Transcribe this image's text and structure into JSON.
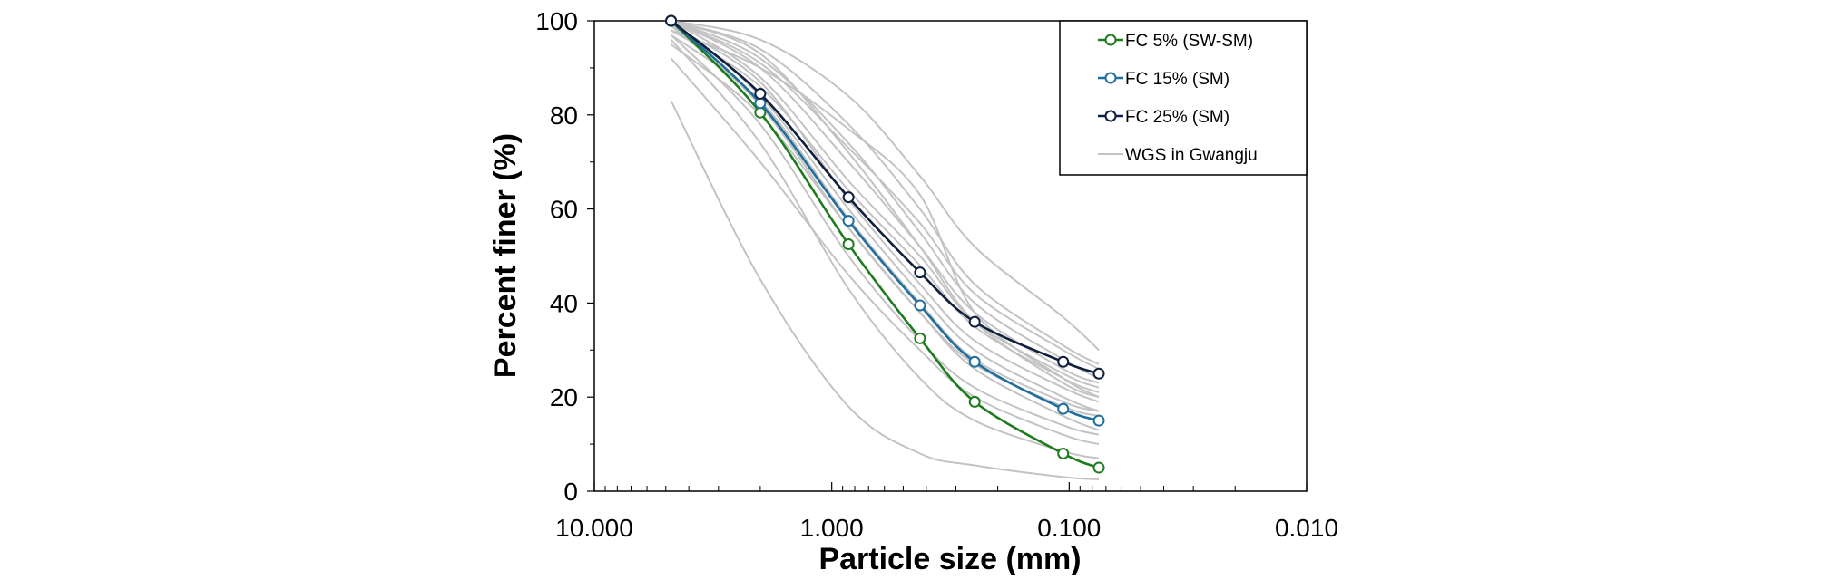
{
  "chart_data": {
    "type": "line",
    "xlabel": "Particle size (mm)",
    "ylabel": "Percent finer (%)",
    "x_scale": "log",
    "x_reversed": true,
    "xlim": [
      10.0,
      0.01
    ],
    "ylim": [
      0,
      100
    ],
    "x_ticks": [
      10.0,
      1.0,
      0.1,
      0.01
    ],
    "x_tick_labels": [
      "10.000",
      "1.000",
      "0.100",
      "0.010"
    ],
    "y_ticks": [
      0,
      20,
      40,
      60,
      80,
      100
    ],
    "y_tick_labels": [
      "0",
      "20",
      "40",
      "60",
      "80",
      "100"
    ],
    "grid": false,
    "legend_position": "top-right",
    "series": [
      {
        "name": "FC 5% (SW-SM)",
        "color": "#1e7b1e",
        "marker": "circle",
        "x": [
          4.75,
          2.0,
          0.85,
          0.425,
          0.25,
          0.106,
          0.075
        ],
        "y": [
          100,
          80.5,
          52.5,
          32.5,
          19,
          8,
          5
        ]
      },
      {
        "name": "FC 15% (SM)",
        "color": "#1f6e9e",
        "marker": "circle",
        "x": [
          4.75,
          2.0,
          0.85,
          0.425,
          0.25,
          0.106,
          0.075
        ],
        "y": [
          100,
          82.5,
          57.5,
          39.5,
          27.5,
          17.5,
          15
        ]
      },
      {
        "name": "FC 25% (SM)",
        "color": "#0f1f3d",
        "marker": "circle",
        "x": [
          4.75,
          2.0,
          0.85,
          0.425,
          0.25,
          0.106,
          0.075
        ],
        "y": [
          100,
          84.5,
          62.5,
          46.5,
          36,
          27.5,
          25
        ]
      },
      {
        "name": "WGS in Gwangju",
        "color": "#c3c3c3",
        "marker": "none",
        "curves": [
          {
            "x": [
              4.75,
              2.0,
              0.85,
              0.425,
              0.25,
              0.106,
              0.075
            ],
            "y": [
              83,
              45,
              18,
              8,
              5.5,
              3,
              2.5
            ]
          },
          {
            "x": [
              4.75,
              2.0,
              0.85,
              0.425,
              0.25,
              0.106,
              0.075
            ],
            "y": [
              96,
              74,
              43,
              24,
              15,
              8.5,
              7
            ]
          },
          {
            "x": [
              4.75,
              2.0,
              0.85,
              0.425,
              0.25,
              0.106,
              0.075
            ],
            "y": [
              92,
              70,
              46,
              30,
              20,
              12,
              10
            ]
          },
          {
            "x": [
              4.75,
              2.0,
              0.85,
              0.425,
              0.25,
              0.106,
              0.075
            ],
            "y": [
              97,
              78,
              50,
              32,
              22,
              14,
              12
            ]
          },
          {
            "x": [
              4.75,
              2.0,
              0.85,
              0.425,
              0.25,
              0.106,
              0.075
            ],
            "y": [
              99,
              82,
              56,
              38,
              27,
              18,
              16
            ]
          },
          {
            "x": [
              4.75,
              2.0,
              0.85,
              0.425,
              0.25,
              0.106,
              0.075
            ],
            "y": [
              100,
              84,
              60,
              42,
              30,
              20,
              17
            ]
          },
          {
            "x": [
              4.75,
              2.0,
              0.85,
              0.425,
              0.25,
              0.106,
              0.075
            ],
            "y": [
              98,
              86,
              64,
              48,
              35,
              24,
              21
            ]
          },
          {
            "x": [
              4.75,
              2.0,
              0.85,
              0.425,
              0.25,
              0.106,
              0.075
            ],
            "y": [
              100,
              88,
              66,
              50,
              36,
              25,
              22
            ]
          },
          {
            "x": [
              4.75,
              2.0,
              0.85,
              0.425,
              0.25,
              0.106,
              0.075
            ],
            "y": [
              100,
              90,
              70,
              52,
              38,
              26,
              23
            ]
          },
          {
            "x": [
              4.75,
              2.0,
              0.85,
              0.425,
              0.25,
              0.106,
              0.075
            ],
            "y": [
              100,
              92,
              74,
              55,
              40,
              28,
              24
            ]
          },
          {
            "x": [
              4.75,
              2.0,
              0.85,
              0.425,
              0.25,
              0.106,
              0.075
            ],
            "y": [
              100,
              94,
              78,
              60,
              44,
              31,
              27
            ]
          },
          {
            "x": [
              4.75,
              2.0,
              0.85,
              0.425,
              0.25,
              0.106,
              0.075
            ],
            "y": [
              100,
              96,
              84,
              67,
              52,
              37,
              30
            ]
          },
          {
            "x": [
              4.75,
              2.0,
              0.85,
              0.425,
              0.25,
              0.106,
              0.075
            ],
            "y": [
              98,
              90,
              77,
              63,
              38,
              24,
              20
            ]
          },
          {
            "x": [
              4.75,
              2.0,
              0.85,
              0.425,
              0.25,
              0.106,
              0.075
            ],
            "y": [
              95,
              80,
              56,
              38,
              26,
              16,
              13
            ]
          },
          {
            "x": [
              4.75,
              2.0,
              0.85,
              0.425,
              0.25,
              0.106,
              0.075
            ],
            "y": [
              99,
              87,
              62,
              44,
              32,
              22,
              19
            ]
          },
          {
            "x": [
              4.75,
              2.0,
              0.85,
              0.425,
              0.25,
              0.106,
              0.075
            ],
            "y": [
              100,
              93,
              72,
              52,
              36,
              23,
              20
            ]
          },
          {
            "x": [
              4.75,
              2.0,
              0.85,
              0.425,
              0.25,
              0.106,
              0.075
            ],
            "y": [
              97,
              83,
              58,
              40,
              28,
              19,
              17
            ]
          },
          {
            "x": [
              4.75,
              2.0,
              0.85,
              0.425,
              0.25,
              0.106,
              0.075
            ],
            "y": [
              100,
              91,
              73,
              57,
              42,
              30,
              26
            ]
          }
        ]
      }
    ]
  }
}
